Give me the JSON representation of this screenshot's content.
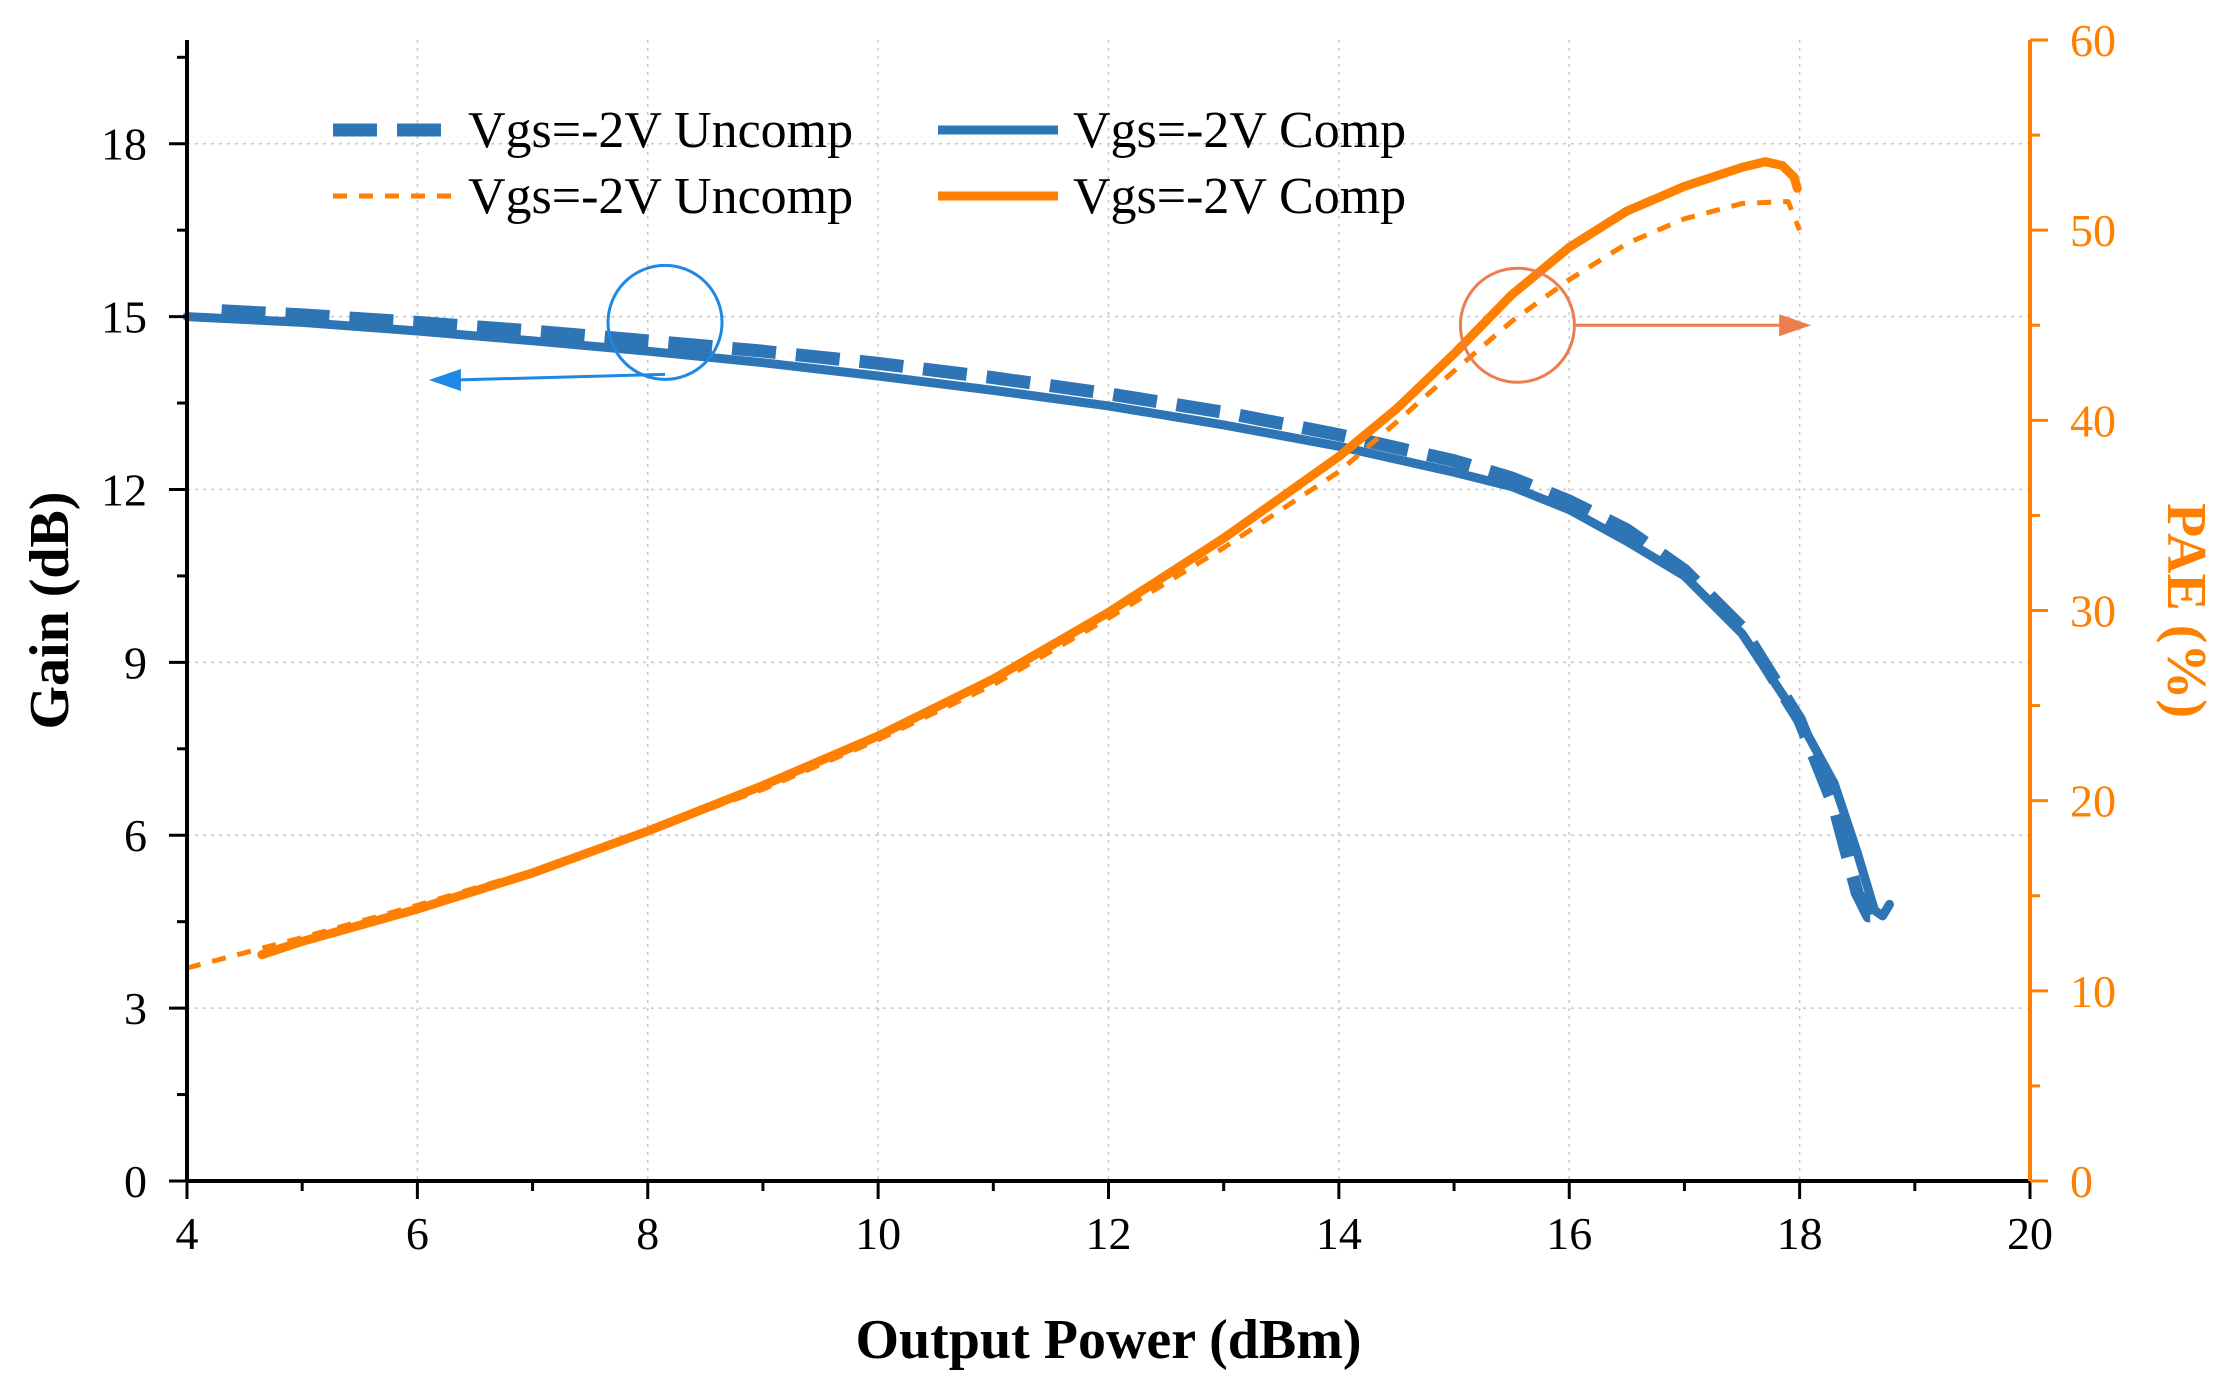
{
  "chart_data": {
    "type": "line",
    "x_axis": {
      "label": "Output Power (dBm)",
      "range": [
        4,
        20
      ],
      "ticks": [
        4,
        6,
        8,
        10,
        12,
        14,
        16,
        18,
        20
      ]
    },
    "y_axis_left": {
      "label": "Gain (dB)",
      "range": [
        0,
        19.8
      ],
      "ticks": [
        0,
        3,
        6,
        9,
        12,
        15,
        18
      ],
      "color": "#000000"
    },
    "y_axis_right": {
      "label": "PAE (%)",
      "range": [
        0,
        60
      ],
      "ticks": [
        0,
        10,
        20,
        30,
        40,
        50,
        60
      ],
      "color": "#ff8000"
    },
    "grid": true,
    "legend": {
      "placement": "top-left",
      "entries": [
        {
          "label": "Vgs=-2V Uncomp",
          "series": 0
        },
        {
          "label": "Vgs=-2V Comp",
          "series": 1
        },
        {
          "label": "Vgs=-2V Uncomp",
          "series": 2
        },
        {
          "label": "Vgs=-2V Comp",
          "series": 3
        }
      ]
    },
    "series": [
      {
        "name": "Vgs=-2V Uncomp",
        "quantity": "Gain",
        "axis": "left",
        "color": "#2e75b6",
        "style": "dashed-thick",
        "x": [
          4.3,
          5,
          6,
          7,
          8,
          9,
          10,
          11,
          12,
          13,
          14,
          15,
          15.5,
          16,
          16.5,
          17,
          17.5,
          18,
          18.3,
          18.5,
          18.6,
          18.7
        ],
        "y": [
          15.1,
          15.03,
          14.9,
          14.75,
          14.58,
          14.4,
          14.19,
          13.94,
          13.66,
          13.34,
          12.95,
          12.5,
          12.2,
          11.8,
          11.3,
          10.6,
          9.6,
          8.0,
          6.5,
          5.0,
          4.6,
          4.6
        ]
      },
      {
        "name": "Vgs=-2V Comp",
        "quantity": "Gain",
        "axis": "left",
        "color": "#2e75b6",
        "style": "solid-thick",
        "x": [
          4,
          5,
          6,
          7,
          8,
          9,
          10,
          11,
          12,
          13,
          14,
          15,
          15.5,
          16,
          16.5,
          17,
          17.5,
          18,
          18.3,
          18.5,
          18.65,
          18.72,
          18.78
        ],
        "y": [
          15.0,
          14.9,
          14.75,
          14.58,
          14.4,
          14.2,
          13.97,
          13.72,
          13.45,
          13.12,
          12.75,
          12.3,
          12.05,
          11.65,
          11.1,
          10.5,
          9.5,
          8.0,
          6.9,
          5.7,
          4.7,
          4.6,
          4.8
        ]
      },
      {
        "name": "Vgs=-2V Uncomp",
        "quantity": "PAE",
        "axis": "right",
        "color": "#ff8000",
        "style": "dotted",
        "x": [
          4,
          5,
          6,
          7,
          8,
          9,
          10,
          11,
          12,
          13,
          14,
          14.5,
          15,
          15.5,
          16,
          16.5,
          17,
          17.5,
          17.9,
          18.0
        ],
        "y": [
          11.2,
          12.8,
          14.5,
          16.3,
          18.4,
          20.6,
          23.2,
          26.1,
          29.6,
          33.3,
          37.3,
          39.9,
          42.6,
          45.2,
          47.4,
          49.3,
          50.6,
          51.4,
          51.5,
          50.0
        ]
      },
      {
        "name": "Vgs=-2V Comp",
        "quantity": "PAE",
        "axis": "right",
        "color": "#ff8000",
        "style": "solid-thick",
        "x": [
          4.65,
          5,
          6,
          7,
          8,
          9,
          10,
          11,
          12,
          13,
          14,
          14.5,
          15,
          15.5,
          16,
          16.5,
          17,
          17.5,
          17.7,
          17.85,
          17.95,
          17.98
        ],
        "y": [
          11.9,
          12.6,
          14.3,
          16.2,
          18.4,
          20.8,
          23.4,
          26.4,
          29.9,
          33.8,
          38.1,
          40.6,
          43.5,
          46.6,
          49.1,
          51.0,
          52.3,
          53.3,
          53.6,
          53.4,
          52.8,
          52.2
        ]
      }
    ],
    "annotations": [
      {
        "type": "circle-arrow",
        "target_axis": "left",
        "circle_center": [
          8.15,
          14.9
        ],
        "arrow_to": [
          6.1,
          13.9
        ],
        "color": "#1e88e5"
      },
      {
        "type": "circle-arrow",
        "target_axis": "right",
        "circle_center": [
          15.55,
          45.0
        ],
        "arrow_to": [
          18.1,
          45.0
        ],
        "color": "#ed7d4f"
      }
    ]
  }
}
